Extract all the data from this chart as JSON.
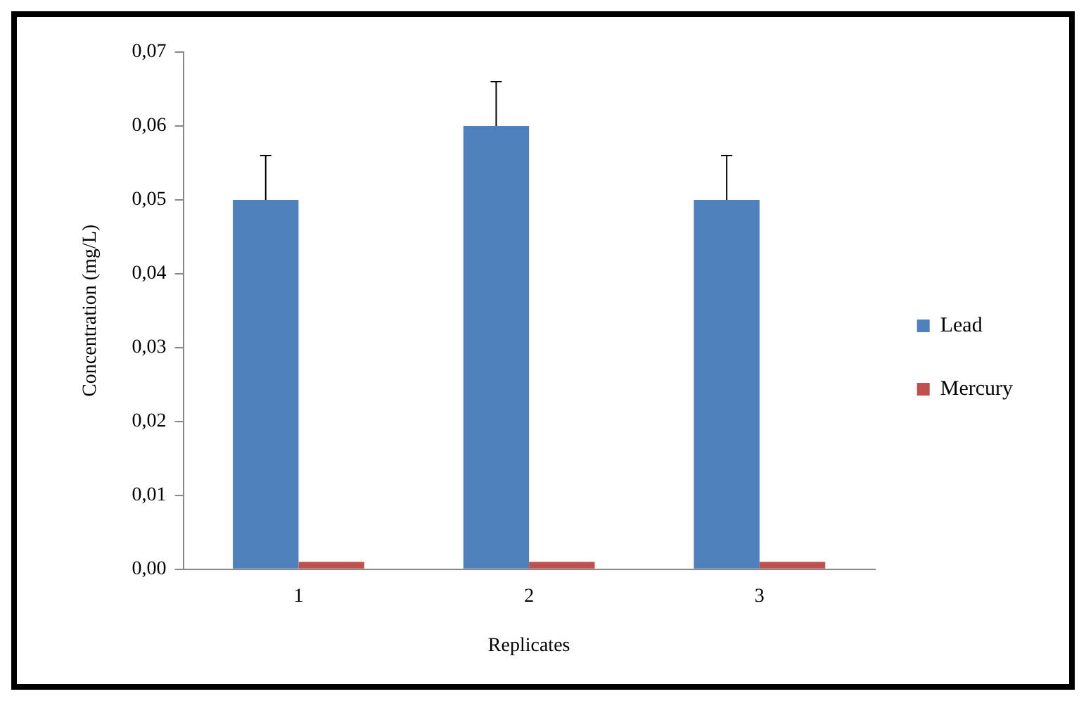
{
  "chart_data": {
    "type": "bar",
    "xlabel": "Replicates",
    "ylabel": "Concentration (mg/L)",
    "categories": [
      "1",
      "2",
      "3"
    ],
    "series": [
      {
        "name": "Lead",
        "color": "#4f81bd",
        "values": [
          0.05,
          0.06,
          0.05
        ],
        "errors": [
          [
            0.05,
            0.056
          ],
          [
            0.06,
            0.066
          ],
          [
            0.05,
            0.056
          ]
        ]
      },
      {
        "name": "Mercury",
        "color": "#c0504d",
        "values": [
          0.001,
          0.001,
          0.001
        ]
      }
    ],
    "ylim": [
      0,
      0.07
    ],
    "yticks": [
      {
        "value": 0,
        "label": "0,00"
      },
      {
        "value": 0.01,
        "label": "0,01"
      },
      {
        "value": 0.02,
        "label": "0,02"
      },
      {
        "value": 0.03,
        "label": "0,03"
      },
      {
        "value": 0.04,
        "label": "0,04"
      },
      {
        "value": 0.05,
        "label": "0,05"
      },
      {
        "value": 0.06,
        "label": "0,06"
      },
      {
        "value": 0.07,
        "label": "0,07"
      }
    ],
    "grid": false,
    "legend": "right"
  }
}
